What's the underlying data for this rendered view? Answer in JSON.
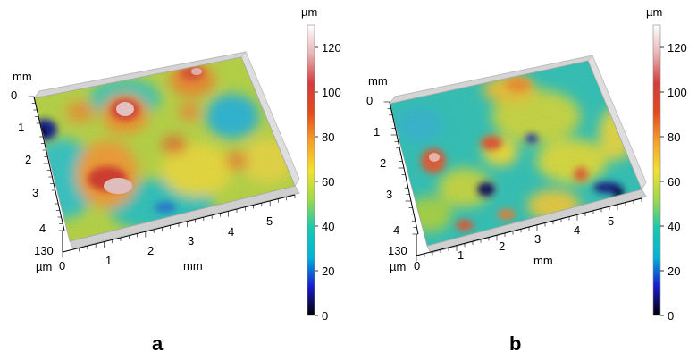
{
  "figure": {
    "panel_a_label": "a",
    "panel_b_label": "b",
    "height_unit": "µm",
    "axis_unit": "mm",
    "colorbar_ticks": [
      "0",
      "20",
      "40",
      "60",
      "80",
      "100",
      "120"
    ],
    "colorbar_stops": [
      "#000000",
      "#1a1ad0",
      "#00b4d8",
      "#18c8b0",
      "#a0d84a",
      "#f2e030",
      "#f5a02a",
      "#e24a1c",
      "#d23c3c",
      "#e8b4b4",
      "#ffffff"
    ],
    "y_ticks": [
      "0",
      "1",
      "2",
      "3",
      "4"
    ],
    "x_ticks": [
      "0",
      "1",
      "2",
      "3",
      "4",
      "5"
    ],
    "z_tick": "130"
  }
}
